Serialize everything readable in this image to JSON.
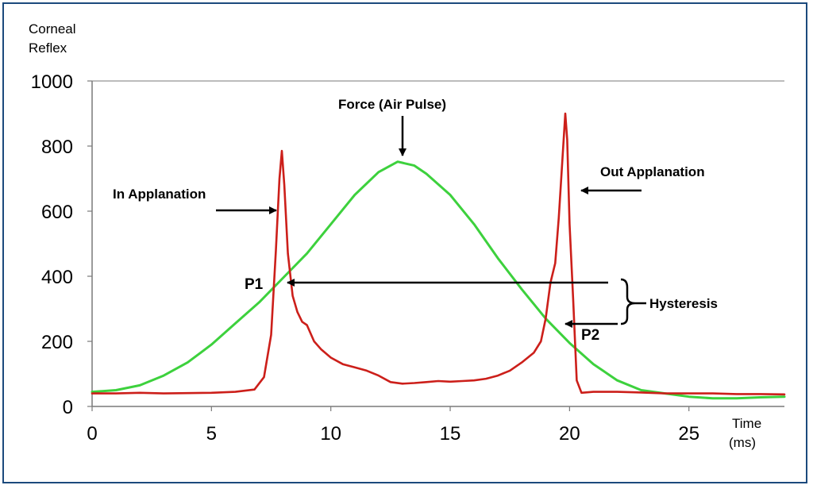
{
  "chart_data": {
    "type": "line",
    "ylabel_lines": [
      "Corneal",
      "Reflex"
    ],
    "xlabel_lines": [
      "Time",
      "(ms)"
    ],
    "xlim": [
      0,
      29
    ],
    "ylim": [
      0,
      1000
    ],
    "x_ticks": [
      "0",
      "5",
      "10",
      "15",
      "20",
      "25"
    ],
    "y_ticks": [
      "0",
      "200",
      "400",
      "600",
      "800",
      "1000"
    ],
    "grid": false,
    "colors": {
      "reflex": "#cc1f1a",
      "force": "#3dd13d",
      "axis": "#7a7a7a",
      "frame": "#1c4a7d"
    },
    "series": [
      {
        "key": "reflex",
        "x": [
          0,
          1,
          2,
          3,
          4,
          5,
          6,
          6.8,
          7.2,
          7.5,
          7.7,
          7.85,
          7.95,
          8.05,
          8.2,
          8.4,
          8.6,
          8.8,
          9.0,
          9.3,
          9.6,
          10,
          10.5,
          11,
          11.5,
          12,
          12.5,
          13,
          13.5,
          14,
          14.5,
          15,
          15.5,
          16,
          16.5,
          17,
          17.5,
          18,
          18.5,
          18.8,
          19.0,
          19.2,
          19.4,
          19.55,
          19.7,
          19.82,
          19.9,
          20.0,
          20.15,
          20.3,
          20.5,
          21,
          22,
          23,
          24,
          25,
          26,
          27,
          28,
          29
        ],
        "y": [
          40,
          40,
          42,
          40,
          41,
          42,
          45,
          52,
          90,
          220,
          480,
          700,
          785,
          680,
          470,
          340,
          290,
          260,
          250,
          200,
          175,
          150,
          130,
          120,
          110,
          95,
          75,
          70,
          72,
          75,
          78,
          76,
          78,
          80,
          85,
          95,
          110,
          135,
          165,
          200,
          270,
          380,
          440,
          580,
          760,
          900,
          820,
          560,
          330,
          80,
          42,
          45,
          45,
          43,
          40,
          40,
          40,
          38,
          38,
          37
        ]
      },
      {
        "key": "force",
        "x": [
          0,
          1,
          2,
          3,
          4,
          5,
          6,
          7,
          8,
          9,
          10,
          11,
          12,
          12.8,
          13.5,
          14,
          15,
          16,
          17,
          18,
          19,
          20,
          21,
          22,
          23,
          24,
          25,
          26,
          27,
          28,
          29
        ],
        "y": [
          45,
          50,
          65,
          95,
          135,
          190,
          255,
          320,
          395,
          470,
          560,
          650,
          720,
          752,
          740,
          715,
          650,
          560,
          455,
          360,
          270,
          195,
          130,
          80,
          50,
          40,
          30,
          25,
          25,
          28,
          30
        ]
      }
    ],
    "annotations": {
      "force_label": "Force (Air Pulse)",
      "in_applanation": "In Applanation",
      "out_applanation": "Out Applanation",
      "p1": "P1",
      "p2": "P2",
      "hysteresis": "Hysteresis"
    }
  }
}
